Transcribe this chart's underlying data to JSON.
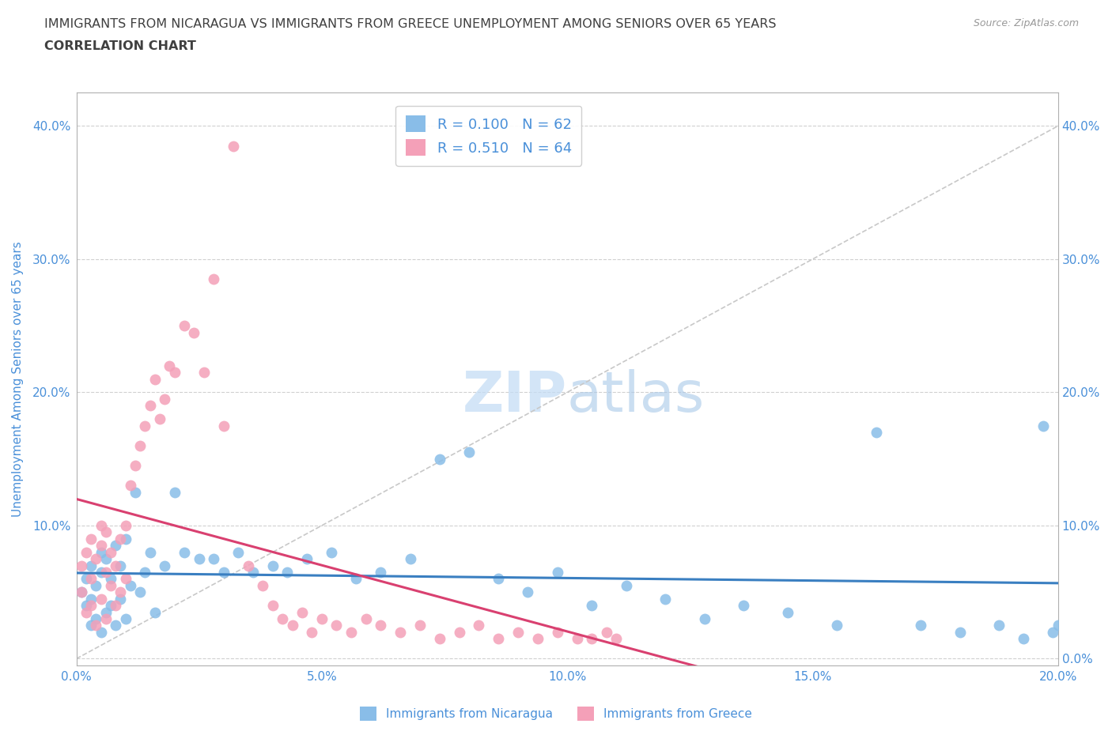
{
  "title_line1": "IMMIGRANTS FROM NICARAGUA VS IMMIGRANTS FROM GREECE UNEMPLOYMENT AMONG SENIORS OVER 65 YEARS",
  "title_line2": "CORRELATION CHART",
  "source": "Source: ZipAtlas.com",
  "ylabel": "Unemployment Among Seniors over 65 years",
  "watermark_part1": "ZIP",
  "watermark_part2": "atlas",
  "xmin": 0.0,
  "xmax": 0.2,
  "ymin": -0.005,
  "ymax": 0.425,
  "xticks": [
    0.0,
    0.05,
    0.1,
    0.15,
    0.2
  ],
  "yticks": [
    0.0,
    0.1,
    0.2,
    0.3,
    0.4
  ],
  "legend_nicaragua": "R = 0.100   N = 62",
  "legend_greece": "R = 0.510   N = 64",
  "color_nicaragua": "#89bde8",
  "color_greece": "#f4a0b8",
  "color_line_nicaragua": "#3a7fc1",
  "color_line_greece": "#d94070",
  "color_diagonal": "#c8c8c8",
  "title_color": "#404040",
  "axis_label_color": "#4a90d9",
  "nicaragua_x": [
    0.001,
    0.002,
    0.002,
    0.003,
    0.003,
    0.003,
    0.004,
    0.004,
    0.005,
    0.005,
    0.005,
    0.006,
    0.006,
    0.007,
    0.007,
    0.008,
    0.008,
    0.009,
    0.009,
    0.01,
    0.01,
    0.011,
    0.012,
    0.013,
    0.014,
    0.015,
    0.016,
    0.018,
    0.02,
    0.022,
    0.025,
    0.028,
    0.03,
    0.033,
    0.036,
    0.04,
    0.043,
    0.047,
    0.052,
    0.057,
    0.062,
    0.068,
    0.074,
    0.08,
    0.086,
    0.092,
    0.098,
    0.105,
    0.112,
    0.12,
    0.128,
    0.136,
    0.145,
    0.155,
    0.163,
    0.172,
    0.18,
    0.188,
    0.193,
    0.197,
    0.199,
    0.2
  ],
  "nicaragua_y": [
    0.05,
    0.04,
    0.06,
    0.025,
    0.045,
    0.07,
    0.03,
    0.055,
    0.02,
    0.065,
    0.08,
    0.035,
    0.075,
    0.04,
    0.06,
    0.025,
    0.085,
    0.045,
    0.07,
    0.03,
    0.09,
    0.055,
    0.125,
    0.05,
    0.065,
    0.08,
    0.035,
    0.07,
    0.125,
    0.08,
    0.075,
    0.075,
    0.065,
    0.08,
    0.065,
    0.07,
    0.065,
    0.075,
    0.08,
    0.06,
    0.065,
    0.075,
    0.15,
    0.155,
    0.06,
    0.05,
    0.065,
    0.04,
    0.055,
    0.045,
    0.03,
    0.04,
    0.035,
    0.025,
    0.17,
    0.025,
    0.02,
    0.025,
    0.015,
    0.175,
    0.02,
    0.025
  ],
  "greece_x": [
    0.001,
    0.001,
    0.002,
    0.002,
    0.003,
    0.003,
    0.003,
    0.004,
    0.004,
    0.005,
    0.005,
    0.005,
    0.006,
    0.006,
    0.006,
    0.007,
    0.007,
    0.008,
    0.008,
    0.009,
    0.009,
    0.01,
    0.01,
    0.011,
    0.012,
    0.013,
    0.014,
    0.015,
    0.016,
    0.017,
    0.018,
    0.019,
    0.02,
    0.022,
    0.024,
    0.026,
    0.028,
    0.03,
    0.032,
    0.035,
    0.038,
    0.04,
    0.042,
    0.044,
    0.046,
    0.048,
    0.05,
    0.053,
    0.056,
    0.059,
    0.062,
    0.066,
    0.07,
    0.074,
    0.078,
    0.082,
    0.086,
    0.09,
    0.094,
    0.098,
    0.102,
    0.105,
    0.108,
    0.11
  ],
  "greece_y": [
    0.05,
    0.07,
    0.035,
    0.08,
    0.04,
    0.06,
    0.09,
    0.025,
    0.075,
    0.045,
    0.085,
    0.1,
    0.03,
    0.065,
    0.095,
    0.055,
    0.08,
    0.04,
    0.07,
    0.05,
    0.09,
    0.06,
    0.1,
    0.13,
    0.145,
    0.16,
    0.175,
    0.19,
    0.21,
    0.18,
    0.195,
    0.22,
    0.215,
    0.25,
    0.245,
    0.215,
    0.285,
    0.175,
    0.385,
    0.07,
    0.055,
    0.04,
    0.03,
    0.025,
    0.035,
    0.02,
    0.03,
    0.025,
    0.02,
    0.03,
    0.025,
    0.02,
    0.025,
    0.015,
    0.02,
    0.025,
    0.015,
    0.02,
    0.015,
    0.02,
    0.015,
    0.015,
    0.02,
    0.015
  ]
}
